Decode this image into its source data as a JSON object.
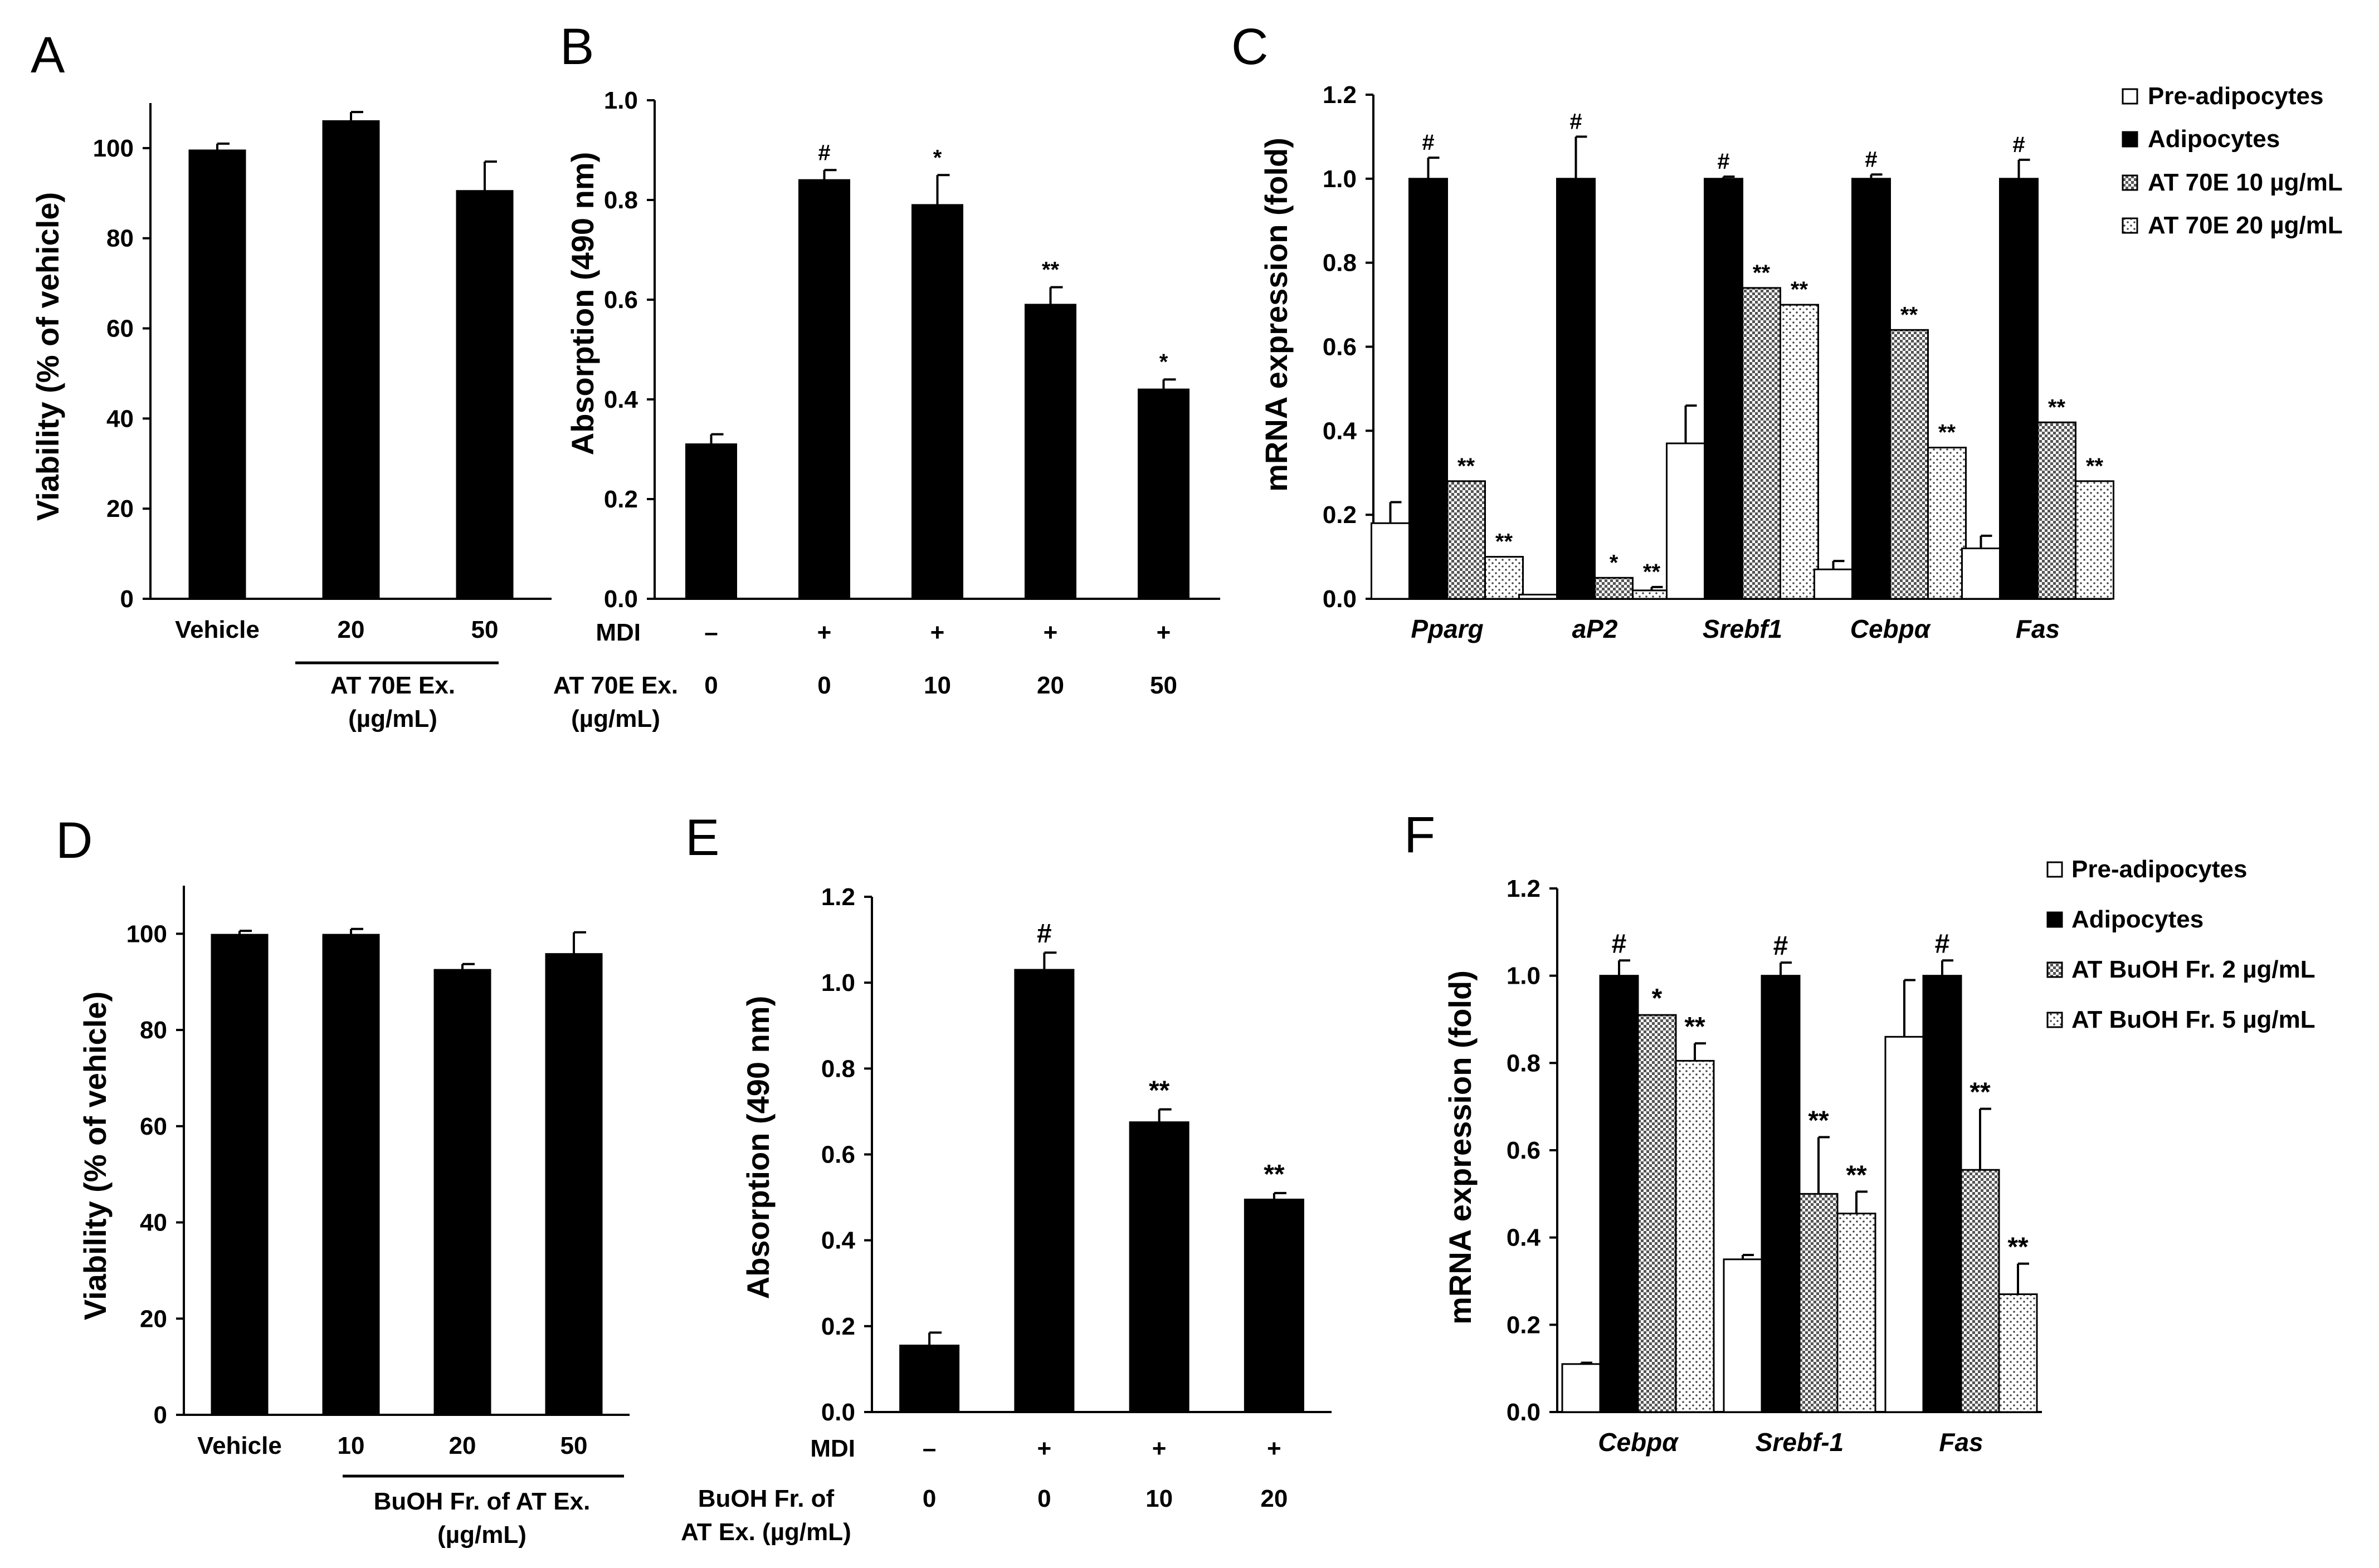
{
  "panels": {
    "A": "A",
    "B": "B",
    "C": "C",
    "D": "D",
    "E": "E",
    "F": "F"
  },
  "common": {
    "mdi": "MDI",
    "minus": "–",
    "plus": "+"
  },
  "chart_data": [
    {
      "id": "A",
      "type": "bar",
      "ylabel": "Viability (% of vehicle)",
      "ylim": [
        0,
        110
      ],
      "yticks": [
        "0",
        "20",
        "40",
        "60",
        "80",
        "100"
      ],
      "categories": [
        "Vehicle",
        "20",
        "50"
      ],
      "values": [
        99.5,
        106,
        90.5
      ],
      "errors": [
        1.5,
        2,
        6.5
      ],
      "group_label": [
        "AT 70E Ex.",
        "(µg/mL)"
      ]
    },
    {
      "id": "B",
      "type": "bar",
      "ylabel": "Absorption (490 nm)",
      "ylim": [
        0,
        1.0
      ],
      "yticks": [
        "0.0",
        "0.2",
        "0.4",
        "0.6",
        "0.8",
        "1.0"
      ],
      "mdi": [
        "–",
        "+",
        "+",
        "+",
        "+"
      ],
      "dose_label": [
        "AT 70E Ex.",
        "(µg/mL)"
      ],
      "doses": [
        "0",
        "0",
        "10",
        "20",
        "50"
      ],
      "values": [
        0.31,
        0.84,
        0.79,
        0.59,
        0.42
      ],
      "errors": [
        0.02,
        0.02,
        0.06,
        0.035,
        0.02
      ],
      "sig": [
        "",
        "#",
        "*",
        "**",
        "*"
      ]
    },
    {
      "id": "C",
      "type": "bar",
      "ylabel": "mRNA expression (fold)",
      "ylim": [
        0,
        1.2
      ],
      "yticks": [
        "0.0",
        "0.2",
        "0.4",
        "0.6",
        "0.8",
        "1.0",
        "1.2"
      ],
      "categories": [
        "Pparg",
        "aP2",
        "Srebf1",
        "Cebpα",
        "Fas"
      ],
      "legend": [
        "Pre-adipocytes",
        "Adipocytes",
        "AT 70E 10 µg/mL",
        "AT 70E 20 µg/mL"
      ],
      "series": [
        {
          "name": "Pre-adipocytes",
          "values": [
            0.18,
            0.01,
            0.37,
            0.07,
            0.12
          ],
          "errors": [
            0.05,
            0,
            0.09,
            0.02,
            0.03
          ]
        },
        {
          "name": "Adipocytes",
          "values": [
            1.0,
            1.0,
            1.0,
            1.0,
            1.0
          ],
          "errors": [
            0.05,
            0.1,
            0.005,
            0.01,
            0.045
          ]
        },
        {
          "name": "AT 70E 10 µg/mL",
          "values": [
            0.28,
            0.05,
            0.74,
            0.64,
            0.42
          ],
          "errors": [
            0,
            0,
            0,
            0,
            0
          ]
        },
        {
          "name": "AT 70E 20 µg/mL",
          "values": [
            0.1,
            0.02,
            0.7,
            0.36,
            0.28
          ],
          "errors": [
            0,
            0.008,
            0,
            0,
            0
          ]
        }
      ],
      "sig": [
        [
          "",
          "#",
          "**",
          "**"
        ],
        [
          "",
          "#",
          "*",
          "**"
        ],
        [
          "",
          "#",
          "**",
          "**"
        ],
        [
          "",
          "#",
          "**",
          "**"
        ],
        [
          "",
          "#",
          "**",
          "**"
        ]
      ]
    },
    {
      "id": "D",
      "type": "bar",
      "ylabel": "Viability (% of vehicle)",
      "ylim": [
        0,
        110
      ],
      "yticks": [
        "0",
        "20",
        "40",
        "60",
        "80",
        "100"
      ],
      "categories": [
        "Vehicle",
        "10",
        "20",
        "50"
      ],
      "values": [
        99.8,
        99.8,
        92.5,
        95.8
      ],
      "errors": [
        0.8,
        1.2,
        1.2,
        4.5
      ],
      "group_label": [
        "BuOH Fr. of AT Ex.",
        "(µg/mL)"
      ]
    },
    {
      "id": "E",
      "type": "bar",
      "ylabel": "Absorption (490 nm)",
      "ylim": [
        0,
        1.2
      ],
      "yticks": [
        "0.0",
        "0.2",
        "0.4",
        "0.6",
        "0.8",
        "1.0",
        "1.2"
      ],
      "mdi": [
        "–",
        "+",
        "+",
        "+"
      ],
      "dose_label": [
        "BuOH Fr. of",
        "AT Ex. (µg/mL)"
      ],
      "doses": [
        "0",
        "0",
        "10",
        "20"
      ],
      "values": [
        0.155,
        1.03,
        0.675,
        0.495
      ],
      "errors": [
        0.03,
        0.04,
        0.03,
        0.015
      ],
      "sig": [
        "",
        "#",
        "**",
        "**"
      ]
    },
    {
      "id": "F",
      "type": "bar",
      "ylabel": "mRNA expression (fold)",
      "ylim": [
        0,
        1.2
      ],
      "yticks": [
        "0.0",
        "0.2",
        "0.4",
        "0.6",
        "0.8",
        "1.0",
        "1.2"
      ],
      "categories": [
        "Cebpα",
        "Srebf-1",
        "Fas"
      ],
      "legend": [
        "Pre-adipocytes",
        "Adipocytes",
        "AT BuOH Fr. 2 µg/mL",
        "AT BuOH Fr. 5 µg/mL"
      ],
      "series": [
        {
          "name": "Pre-adipocytes",
          "values": [
            0.11,
            0.35,
            0.86
          ],
          "errors": [
            0.003,
            0.01,
            0.13
          ]
        },
        {
          "name": "Adipocytes",
          "values": [
            1.0,
            1.0,
            1.0
          ],
          "errors": [
            0.035,
            0.03,
            0.035
          ]
        },
        {
          "name": "AT BuOH Fr. 2 µg/mL",
          "values": [
            0.91,
            0.5,
            0.555
          ],
          "errors": [
            0,
            0.13,
            0.14
          ]
        },
        {
          "name": "AT BuOH Fr. 5 µg/mL",
          "values": [
            0.805,
            0.455,
            0.27
          ],
          "errors": [
            0.04,
            0.05,
            0.07
          ]
        }
      ],
      "sig": [
        [
          "",
          "#",
          "*",
          "**"
        ],
        [
          "",
          "#",
          "**",
          "**"
        ],
        [
          "",
          "#",
          "**",
          "**"
        ]
      ]
    }
  ]
}
